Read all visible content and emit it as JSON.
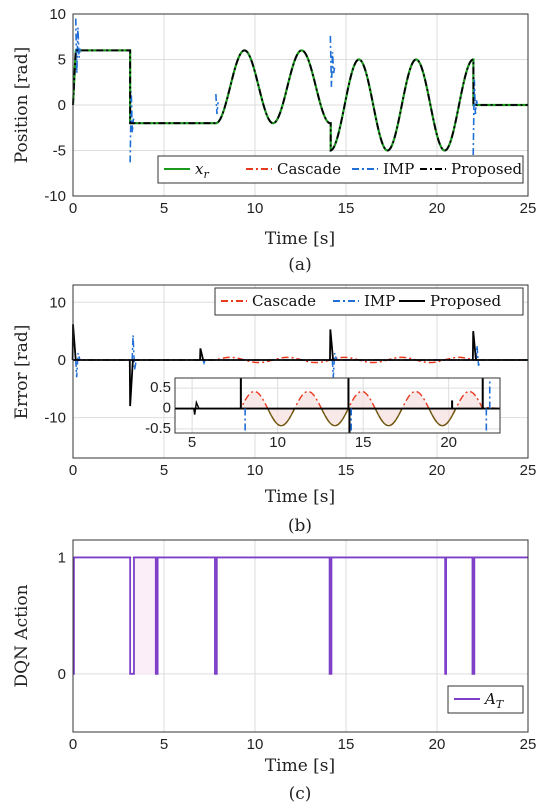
{
  "chart_data": [
    {
      "id": "a",
      "type": "line",
      "caption": "(a)",
      "xlabel": "Time [s]",
      "ylabel": "Position [rad]",
      "xlim": [
        0,
        25
      ],
      "ylim": [
        -10,
        10
      ],
      "xticks": [
        "0",
        "5",
        "10",
        "15",
        "20",
        "25"
      ],
      "yticks": [
        "-10",
        "-5",
        "0",
        "5",
        "10"
      ],
      "grid": true,
      "legend_position": "bottom-right",
      "series": [
        {
          "name": "x_r",
          "label_base": "x",
          "label_sub": "r",
          "color": "#1a9a1a",
          "dash": "solid"
        },
        {
          "name": "Cascade",
          "label": "Cascade",
          "color": "#e8391e",
          "dash": "dashdot"
        },
        {
          "name": "IMP",
          "label": "IMP",
          "color": "#1f6fd6",
          "dash": "dashdot"
        },
        {
          "name": "Proposed",
          "label": "Proposed",
          "color": "#000000",
          "dash": "dashdot"
        }
      ],
      "reference_signal": {
        "segments": [
          {
            "t0": 0,
            "t1": 0.15,
            "kind": "ramp",
            "y0": 0,
            "y1": 6
          },
          {
            "t0": 0.15,
            "t1": 3.14,
            "kind": "const",
            "y": 6
          },
          {
            "t0": 3.14,
            "t1": 7.85,
            "kind": "const",
            "y": -2
          },
          {
            "t0": 7.85,
            "t1": 14.14,
            "kind": "sine",
            "offset": 2,
            "amp": 4,
            "period": 3.1416,
            "phase_t": 7.85
          },
          {
            "t0": 14.14,
            "t1": 21.99,
            "kind": "sine",
            "offset": 0,
            "amp": 5,
            "period": 3.1416,
            "phase_t": 14.14
          },
          {
            "t0": 21.99,
            "t1": 25,
            "kind": "const",
            "y": 0
          }
        ]
      },
      "imp_spikes": [
        {
          "t": 0.15,
          "values": [
            9.5,
            3.5,
            8.5,
            5.2,
            6.2
          ]
        },
        {
          "t": 3.14,
          "values": [
            -6.3,
            1.5,
            -3.0,
            -1.5,
            -2.0
          ]
        },
        {
          "t": 7.85,
          "values": [
            1.2,
            -1.0,
            0.3
          ]
        },
        {
          "t": 14.14,
          "values": [
            7.6,
            2.0,
            5.8,
            3.5,
            4.2
          ]
        },
        {
          "t": 21.99,
          "values": [
            -5.5,
            2.8,
            -1.0,
            0.5,
            0.0
          ]
        }
      ]
    },
    {
      "id": "b",
      "type": "line",
      "caption": "(b)",
      "xlabel": "Time [s]",
      "ylabel": "Error [rad]",
      "xlim": [
        0,
        25
      ],
      "ylim": [
        -17,
        13
      ],
      "xticks": [
        "0",
        "5",
        "10",
        "15",
        "20",
        "25"
      ],
      "yticks": [
        "-10",
        "0",
        "10"
      ],
      "grid": true,
      "legend_position": "top-right",
      "series": [
        {
          "name": "Cascade",
          "label": "Cascade",
          "color": "#e8391e",
          "dash": "dashdot"
        },
        {
          "name": "IMP",
          "label": "IMP",
          "color": "#1f6fd6",
          "dash": "dashdot"
        },
        {
          "name": "Proposed",
          "label": "Proposed",
          "color": "#000000",
          "dash": "solid"
        }
      ],
      "proposed_spikes": [
        {
          "t": 0.0,
          "peak": 6.2
        },
        {
          "t": 3.14,
          "peak": -8.0
        },
        {
          "t": 7.0,
          "peak": 2.0
        },
        {
          "t": 14.14,
          "peak": 5.3
        },
        {
          "t": 21.99,
          "peak": 5.0
        }
      ],
      "imp_spikes": [
        {
          "t": 0.2,
          "peak": -3.0
        },
        {
          "t": 3.3,
          "peak": 4.3
        },
        {
          "t": 7.2,
          "peak": -0.5
        },
        {
          "t": 14.3,
          "peak": -3.0
        },
        {
          "t": 22.2,
          "peak": 2.5
        }
      ],
      "cascade_ripple_amp": 0.45,
      "inset": {
        "xlim": [
          4,
          23
        ],
        "ylim": [
          -0.6,
          0.75
        ],
        "xticks": [
          "5",
          "10",
          "15",
          "20"
        ],
        "yticks": [
          "0.5",
          "0",
          "-0.5"
        ],
        "grid": true,
        "ripple_amp": 0.42,
        "shaded_color": "#f6dede"
      }
    },
    {
      "id": "c",
      "type": "line",
      "caption": "(c)",
      "xlabel": "Time [s]",
      "ylabel": "DQN Action",
      "xlim": [
        0,
        25
      ],
      "ylim": [
        -0.5,
        1.15
      ],
      "xticks": [
        "0",
        "5",
        "10",
        "15",
        "20",
        "25"
      ],
      "yticks": [
        "1",
        "0"
      ],
      "grid": true,
      "legend_position": "bottom-right",
      "series": [
        {
          "name": "A_T",
          "label_base": "A",
          "label_sub": "T",
          "color": "#7d3fc8",
          "dash": "solid"
        }
      ],
      "zero_intervals": [
        [
          0.0,
          0.05
        ],
        [
          3.14,
          3.35
        ],
        [
          4.55,
          4.65
        ],
        [
          7.8,
          7.9
        ],
        [
          14.1,
          14.2
        ],
        [
          20.45,
          20.5
        ],
        [
          21.95,
          22.05
        ]
      ]
    }
  ]
}
